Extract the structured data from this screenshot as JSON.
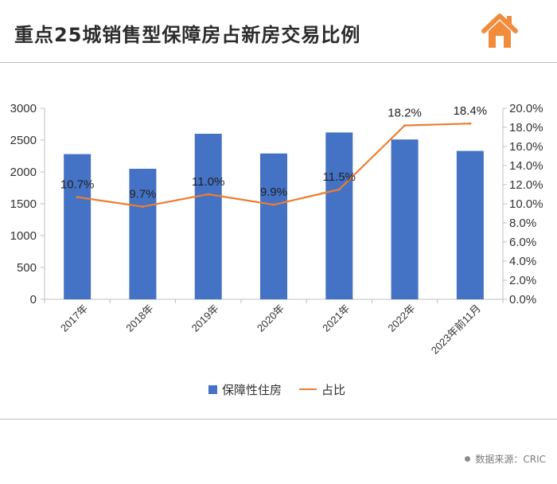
{
  "header": {
    "title": "重点25城销售型保障房占新房交易比例",
    "logo_icon": "house-icon",
    "logo_color": "#f08c3c"
  },
  "chart_data": {
    "type": "bar",
    "categories": [
      "2017年",
      "2018年",
      "2019年",
      "2020年",
      "2021年",
      "2022年",
      "2023年前11月"
    ],
    "series": [
      {
        "name": "保障性住房",
        "type": "bar",
        "axis": "left",
        "color": "#4472c4",
        "values": [
          2280,
          2050,
          2600,
          2290,
          2620,
          2510,
          2330
        ]
      },
      {
        "name": "占比",
        "type": "line",
        "axis": "right",
        "color": "#ed7d31",
        "values": [
          10.7,
          9.7,
          11.0,
          9.9,
          11.5,
          18.2,
          18.4
        ],
        "labels": [
          "10.7%",
          "9.7%",
          "11.0%",
          "9.9%",
          "11.5%",
          "18.2%",
          "18.4%"
        ]
      }
    ],
    "y_left": {
      "ylim": [
        0,
        3000
      ],
      "ticks": [
        "0",
        "500",
        "1000",
        "1500",
        "2000",
        "2500",
        "3000"
      ]
    },
    "y_right": {
      "ylim": [
        0,
        20
      ],
      "ticks": [
        "0.0%",
        "2.0%",
        "4.0%",
        "6.0%",
        "8.0%",
        "10.0%",
        "12.0%",
        "14.0%",
        "16.0%",
        "18.0%",
        "20.0%"
      ]
    },
    "grid": false,
    "legend": "bottom",
    "legend_items": [
      "保障性住房",
      "占比"
    ]
  },
  "footer": {
    "source": "数据来源：CRIC"
  }
}
